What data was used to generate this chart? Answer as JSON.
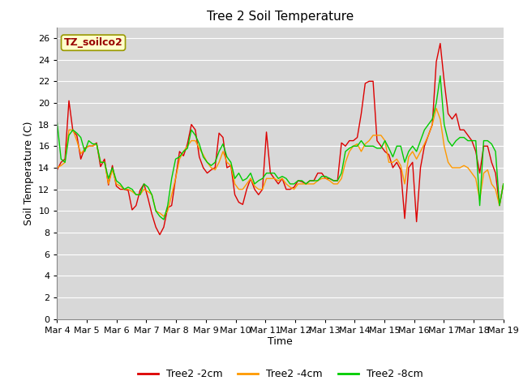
{
  "title": "Tree 2 Soil Temperature",
  "xlabel": "Time",
  "ylabel": "Soil Temperature (C)",
  "ylim": [
    0,
    27
  ],
  "yticks": [
    0,
    2,
    4,
    6,
    8,
    10,
    12,
    14,
    16,
    18,
    20,
    22,
    24,
    26
  ],
  "xtick_labels": [
    "Mar 4",
    "Mar 5",
    "Mar 6",
    "Mar 7",
    "Mar 8",
    "Mar 9",
    "Mar 10",
    "Mar 11",
    "Mar 12",
    "Mar 13",
    "Mar 14",
    "Mar 15",
    "Mar 16",
    "Mar 17",
    "Mar 18",
    "Mar 19"
  ],
  "annotation_text": "TZ_soilco2",
  "annotation_text_color": "#990000",
  "annotation_bg": "#ffffcc",
  "annotation_edge": "#999900",
  "line_colors": {
    "2cm": "#dd0000",
    "4cm": "#ff9900",
    "8cm": "#00cc00"
  },
  "legend_labels": [
    "Tree2 -2cm",
    "Tree2 -4cm",
    "Tree2 -8cm"
  ],
  "plot_bg_color": "#d8d8d8",
  "fig_bg_color": "#ffffff",
  "grid_color": "#ffffff",
  "series_2cm": [
    13.8,
    14.5,
    14.8,
    20.2,
    17.4,
    17.0,
    14.8,
    15.8,
    16.0,
    16.0,
    16.3,
    14.1,
    14.8,
    12.4,
    14.2,
    12.3,
    12.0,
    12.0,
    11.9,
    10.1,
    10.5,
    11.9,
    12.5,
    11.2,
    9.7,
    8.5,
    7.8,
    8.5,
    10.3,
    10.5,
    13.0,
    15.5,
    15.1,
    16.2,
    18.0,
    17.5,
    15.0,
    14.0,
    13.5,
    13.8,
    14.0,
    17.2,
    16.8,
    14.0,
    14.2,
    11.5,
    10.8,
    10.6,
    12.0,
    13.0,
    12.0,
    11.5,
    12.0,
    17.3,
    13.5,
    13.0,
    12.5,
    13.0,
    12.0,
    12.0,
    12.2,
    12.8,
    12.7,
    12.5,
    12.8,
    12.8,
    13.5,
    13.5,
    13.0,
    13.0,
    12.8,
    12.8,
    16.3,
    16.0,
    16.5,
    16.5,
    16.8,
    19.0,
    21.8,
    22.0,
    22.0,
    16.5,
    16.0,
    15.5,
    15.2,
    14.0,
    14.5,
    13.8,
    9.3,
    14.0,
    14.5,
    9.0,
    14.0,
    16.0,
    17.0,
    18.0,
    23.8,
    25.5,
    22.0,
    19.0,
    18.5,
    19.0,
    17.5,
    17.5,
    17.0,
    16.5,
    15.5,
    13.5,
    16.0,
    16.0,
    14.5,
    13.5,
    10.5,
    12.5
  ],
  "series_4cm": [
    14.0,
    14.2,
    14.5,
    17.5,
    17.5,
    16.5,
    15.3,
    15.7,
    16.0,
    16.0,
    16.2,
    14.5,
    14.5,
    12.5,
    13.8,
    12.5,
    12.3,
    12.0,
    12.0,
    11.8,
    11.5,
    11.5,
    12.0,
    11.8,
    11.5,
    10.0,
    9.8,
    9.5,
    10.0,
    11.5,
    13.0,
    14.8,
    15.5,
    16.0,
    16.5,
    16.5,
    15.8,
    15.2,
    14.5,
    14.0,
    13.8,
    14.5,
    15.5,
    14.5,
    14.2,
    12.5,
    12.0,
    12.0,
    12.5,
    13.0,
    12.3,
    12.0,
    12.0,
    13.0,
    13.0,
    13.0,
    12.8,
    13.0,
    12.5,
    12.2,
    12.0,
    12.5,
    12.5,
    12.5,
    12.5,
    12.5,
    12.8,
    13.0,
    13.0,
    12.8,
    12.5,
    12.5,
    13.0,
    14.5,
    15.5,
    16.0,
    16.2,
    15.5,
    16.2,
    16.5,
    17.0,
    17.0,
    17.0,
    16.5,
    14.5,
    14.5,
    14.8,
    14.2,
    12.5,
    15.0,
    15.5,
    14.8,
    15.5,
    16.2,
    17.0,
    18.0,
    19.5,
    18.5,
    16.0,
    14.5,
    14.0,
    14.0,
    14.0,
    14.2,
    14.0,
    13.5,
    13.0,
    11.0,
    13.5,
    13.8,
    12.5,
    12.0,
    10.5,
    12.5
  ],
  "series_8cm": [
    18.2,
    14.8,
    14.5,
    17.0,
    17.5,
    17.2,
    16.8,
    15.5,
    16.5,
    16.2,
    16.2,
    14.5,
    14.5,
    13.0,
    14.0,
    12.8,
    12.5,
    12.0,
    12.2,
    12.0,
    11.5,
    11.5,
    12.5,
    12.2,
    11.5,
    10.0,
    9.5,
    9.2,
    10.5,
    13.0,
    14.8,
    15.0,
    15.5,
    15.8,
    17.5,
    17.0,
    16.2,
    15.0,
    14.5,
    14.2,
    14.5,
    15.5,
    16.2,
    15.0,
    14.5,
    13.0,
    13.5,
    12.8,
    13.0,
    13.5,
    12.5,
    12.8,
    13.0,
    13.5,
    13.5,
    13.5,
    13.0,
    13.2,
    13.0,
    12.5,
    12.5,
    12.8,
    12.8,
    12.5,
    12.8,
    12.8,
    12.8,
    13.2,
    13.2,
    13.0,
    12.8,
    12.8,
    13.5,
    15.5,
    15.8,
    16.0,
    16.0,
    16.5,
    16.0,
    16.0,
    16.0,
    15.8,
    15.8,
    16.5,
    15.8,
    15.0,
    16.0,
    16.0,
    14.5,
    15.5,
    16.0,
    15.5,
    16.5,
    17.5,
    18.0,
    18.5,
    20.0,
    22.5,
    18.0,
    16.5,
    16.0,
    16.5,
    16.8,
    16.8,
    16.5,
    16.5,
    16.5,
    10.5,
    16.5,
    16.5,
    16.2,
    15.5,
    10.5,
    12.5
  ]
}
